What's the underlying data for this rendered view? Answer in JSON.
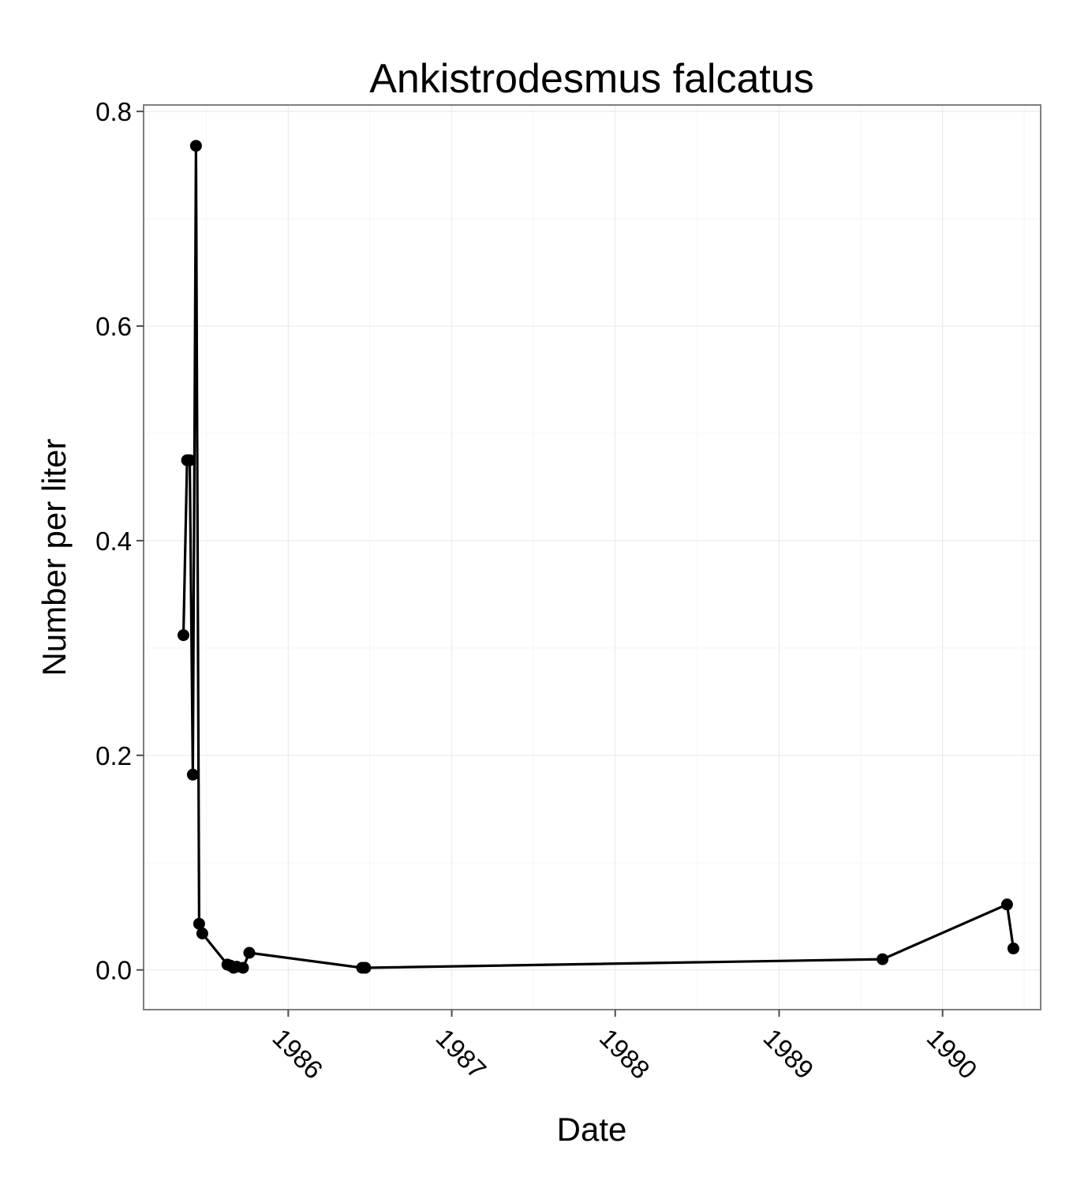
{
  "chart_data": {
    "type": "line",
    "title": "Ankistrodesmus falcatus",
    "xlabel": "Date",
    "ylabel": "Number per liter",
    "x_ticks": [
      "1986",
      "1987",
      "1988",
      "1989",
      "1990"
    ],
    "y_ticks": [
      "0.0",
      "0.2",
      "0.4",
      "0.6",
      "0.8"
    ],
    "xlim": [
      "1985-02-12",
      "1990-08-08"
    ],
    "ylim": [
      -0.037,
      0.806
    ],
    "grid": true,
    "legend": "none",
    "series": [
      {
        "x": [
          "1985-05-12",
          "1985-05-20",
          "1985-05-26",
          "1985-06-02",
          "1985-06-09",
          "1985-06-16",
          "1985-06-23",
          "1985-08-18",
          "1985-08-25",
          "1985-09-01",
          "1985-09-08",
          "1985-09-22",
          "1985-10-06",
          "1986-06-15",
          "1986-06-22",
          "1989-08-20",
          "1990-05-25",
          "1990-06-08"
        ],
        "y": [
          0.312,
          0.475,
          0.475,
          0.182,
          0.768,
          0.043,
          0.034,
          0.005,
          0.004,
          0.002,
          0.003,
          0.002,
          0.016,
          0.002,
          0.002,
          0.01,
          0.061,
          0.02
        ]
      }
    ]
  }
}
